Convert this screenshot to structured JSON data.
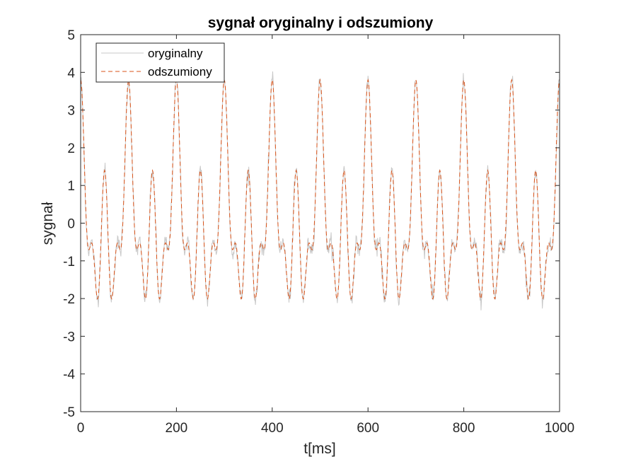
{
  "chart_data": {
    "type": "line",
    "title": "sygnał oryginalny i odszumiony",
    "xlabel": "t[ms]",
    "ylabel": "sygnał",
    "xlim": [
      0,
      1000
    ],
    "ylim": [
      -5,
      5
    ],
    "xticks": [
      0,
      200,
      400,
      600,
      800,
      1000
    ],
    "yticks": [
      5,
      4,
      3,
      2,
      1,
      0,
      -1,
      -2,
      -3,
      -4,
      -5
    ],
    "xtick_labels": [
      "0",
      "200",
      "400",
      "600",
      "800",
      "1000"
    ],
    "ytick_labels": [
      "5",
      "4",
      "3",
      "2",
      "1",
      "0",
      "-1",
      "-2",
      "-3",
      "-4",
      "-5"
    ],
    "grid": false,
    "legend_position": "top-left",
    "series": [
      {
        "name": "oryginalny",
        "color": "#c8c8c8",
        "style": "solid",
        "components": [
          {
            "amp": 1.2,
            "freq_hz": 10,
            "phase_deg": 90
          },
          {
            "amp": 1.6,
            "freq_hz": 20,
            "phase_deg": 90
          },
          {
            "amp": 1.0,
            "freq_hz": 40,
            "phase_deg": 90
          }
        ],
        "noise_std": 0.12
      },
      {
        "name": "odszumiony",
        "color": "#d95319",
        "style": "dashed",
        "components": [
          {
            "amp": 1.2,
            "freq_hz": 10,
            "phase_deg": 90
          },
          {
            "amp": 1.6,
            "freq_hz": 20,
            "phase_deg": 90
          },
          {
            "amp": 1.0,
            "freq_hz": 40,
            "phase_deg": 90
          }
        ],
        "noise_std": 0.0
      }
    ]
  }
}
